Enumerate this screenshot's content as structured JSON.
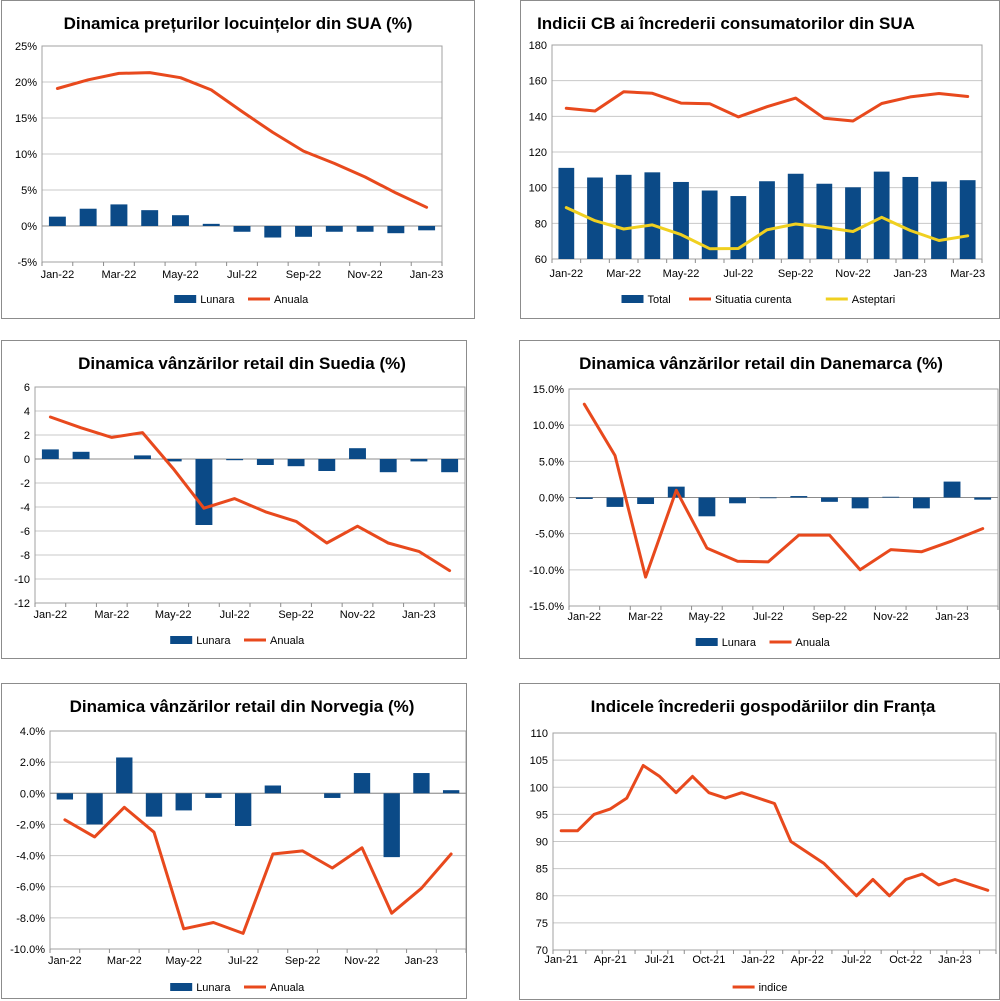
{
  "colors": {
    "bar": "#0b4a87",
    "line": "#e8491d",
    "yellow": "#f0d020",
    "grid": "#c8c8c8"
  },
  "chart_data": [
    {
      "id": "sua-locuinte",
      "type": "bar+line",
      "title": "Dinamica prețurilor locuințelor din SUA (%)",
      "yticks": [
        "25%",
        "20%",
        "15%",
        "10%",
        "5%",
        "0%",
        "-5%"
      ],
      "ylim": [
        -5,
        25
      ],
      "xticks": [
        "Jan-22",
        "Mar-22",
        "May-22",
        "Jul-22",
        "Sep-22",
        "Nov-22",
        "Jan-23"
      ],
      "n": 13,
      "series": [
        {
          "name": "Lunara",
          "kind": "bar",
          "color": "bar",
          "values": [
            1.3,
            2.4,
            3.0,
            2.2,
            1.5,
            0.3,
            -0.8,
            -1.6,
            -1.5,
            -0.8,
            -0.8,
            -1.0,
            -0.6
          ]
        },
        {
          "name": "Anuala",
          "kind": "line",
          "color": "line",
          "values": [
            19.1,
            20.3,
            21.2,
            21.3,
            20.6,
            18.9,
            15.9,
            13.0,
            10.4,
            8.7,
            6.8,
            4.6,
            2.6
          ]
        }
      ],
      "legend": [
        "Lunara",
        "Anuala"
      ]
    },
    {
      "id": "sua-cb",
      "type": "bar+line",
      "title": "Indicii CB ai încrederii consumatorilor din SUA",
      "yticks": [
        "180",
        "160",
        "140",
        "120",
        "100",
        "80",
        "60"
      ],
      "ylim": [
        60,
        180
      ],
      "xticks": [
        "Jan-22",
        "Mar-22",
        "May-22",
        "Jul-22",
        "Sep-22",
        "Nov-22",
        "Jan-23",
        "Mar-23"
      ],
      "n": 15,
      "series": [
        {
          "name": "Total",
          "kind": "bar",
          "color": "bar",
          "values": [
            111.1,
            105.7,
            107.2,
            108.6,
            103.2,
            98.4,
            95.3,
            103.6,
            107.8,
            102.2,
            100.2,
            109.0,
            106.0,
            103.4,
            104.2
          ]
        },
        {
          "name": "Situatia curenta",
          "kind": "line",
          "color": "line",
          "values": [
            144.5,
            143.0,
            153.8,
            152.9,
            147.4,
            147.1,
            139.7,
            145.4,
            150.2,
            138.9,
            137.4,
            147.2,
            150.9,
            152.8,
            151.1
          ]
        },
        {
          "name": "Asteptari",
          "kind": "line",
          "color": "yellow",
          "values": [
            88.8,
            81.5,
            76.8,
            79.1,
            73.7,
            65.8,
            65.9,
            76.4,
            79.6,
            77.8,
            75.4,
            83.4,
            76.0,
            70.4,
            73.0
          ]
        }
      ],
      "legend": [
        "Total",
        "Situatia curenta",
        "Asteptari"
      ]
    },
    {
      "id": "suedia",
      "type": "bar+line",
      "title": "Dinamica vânzărilor retail din Suedia (%)",
      "yticks": [
        "6",
        "4",
        "2",
        "0",
        "-2",
        "-4",
        "-6",
        "-8",
        "-10",
        "-12"
      ],
      "ylim": [
        -12,
        6
      ],
      "xticks": [
        "Jan-22",
        "Mar-22",
        "May-22",
        "Jul-22",
        "Sep-22",
        "Nov-22",
        "Jan-23"
      ],
      "n": 14,
      "series": [
        {
          "name": "Lunara",
          "kind": "bar",
          "color": "bar",
          "values": [
            0.8,
            0.6,
            0.0,
            0.3,
            -0.2,
            -5.5,
            -0.1,
            -0.5,
            -0.6,
            -1.0,
            0.9,
            -1.1,
            -0.2,
            -1.1
          ]
        },
        {
          "name": "Anuala",
          "kind": "line",
          "color": "line",
          "values": [
            3.5,
            2.6,
            1.8,
            2.2,
            -0.8,
            -4.1,
            -3.3,
            -4.4,
            -5.2,
            -7.0,
            -5.6,
            -7.0,
            -7.7,
            -9.3
          ]
        }
      ],
      "legend": [
        "Lunara",
        "Anuala"
      ]
    },
    {
      "id": "danemarca",
      "type": "bar+line",
      "title": "Dinamica vânzărilor retail din Danemarca (%)",
      "yticks": [
        "15.0%",
        "10.0%",
        "5.0%",
        "0.0%",
        "-5.0%",
        "-10.0%",
        "-15.0%"
      ],
      "ylim": [
        -15,
        15
      ],
      "xticks": [
        "Jan-22",
        "Mar-22",
        "May-22",
        "Jul-22",
        "Sep-22",
        "Nov-22",
        "Jan-23"
      ],
      "n": 14,
      "series": [
        {
          "name": "Lunara",
          "kind": "bar",
          "color": "bar",
          "values": [
            -0.2,
            -1.3,
            -0.9,
            1.5,
            -2.6,
            -0.8,
            -0.1,
            0.2,
            -0.6,
            -1.5,
            0.1,
            -1.5,
            2.2,
            -0.3
          ]
        },
        {
          "name": "Anuala",
          "kind": "line",
          "color": "line",
          "values": [
            12.9,
            5.8,
            -11.0,
            1.0,
            -7.0,
            -8.8,
            -8.9,
            -5.2,
            -5.2,
            -10.0,
            -7.2,
            -7.5,
            -6.0,
            -4.3
          ]
        }
      ],
      "legend": [
        "Lunara",
        "Anuala"
      ]
    },
    {
      "id": "norvegia",
      "type": "bar+line",
      "title": "Dinamica vânzărilor retail din Norvegia (%)",
      "yticks": [
        "4.0%",
        "2.0%",
        "0.0%",
        "-2.0%",
        "-4.0%",
        "-6.0%",
        "-8.0%",
        "-10.0%"
      ],
      "ylim": [
        -10,
        4
      ],
      "xticks": [
        "Jan-22",
        "Mar-22",
        "May-22",
        "Jul-22",
        "Sep-22",
        "Nov-22",
        "Jan-23"
      ],
      "n": 14,
      "series": [
        {
          "name": "Lunara",
          "kind": "bar",
          "color": "bar",
          "values": [
            -0.4,
            -2.0,
            2.3,
            -1.5,
            -1.1,
            -0.3,
            -2.1,
            0.5,
            0.0,
            -0.3,
            1.3,
            -4.1,
            1.3,
            0.2
          ]
        },
        {
          "name": "Anuala",
          "kind": "line",
          "color": "line",
          "values": [
            -1.7,
            -2.8,
            -0.9,
            -2.5,
            -8.7,
            -8.3,
            -9.0,
            -3.9,
            -3.7,
            -4.8,
            -3.5,
            -7.7,
            -6.1,
            -3.9
          ]
        }
      ],
      "legend": [
        "Lunara",
        "Anuala"
      ]
    },
    {
      "id": "franta",
      "type": "line",
      "title": "Indicele încrederii gospodăriilor din Franța",
      "yticks": [
        "110",
        "105",
        "100",
        "95",
        "90",
        "85",
        "80",
        "75",
        "70"
      ],
      "ylim": [
        70,
        110
      ],
      "xticks": [
        "Jan-21",
        "Apr-21",
        "Jul-21",
        "Oct-21",
        "Jan-22",
        "Apr-22",
        "Jul-22",
        "Oct-22",
        "Jan-23"
      ],
      "n": 27,
      "series": [
        {
          "name": "indice",
          "kind": "line",
          "color": "line",
          "values": [
            92,
            92,
            95,
            96,
            98,
            104,
            102,
            99,
            102,
            99,
            98,
            99,
            98,
            97,
            90,
            88,
            86,
            83,
            80,
            83,
            80,
            83,
            84,
            82,
            83,
            82,
            81
          ]
        }
      ],
      "legend": [
        "indice"
      ]
    }
  ]
}
